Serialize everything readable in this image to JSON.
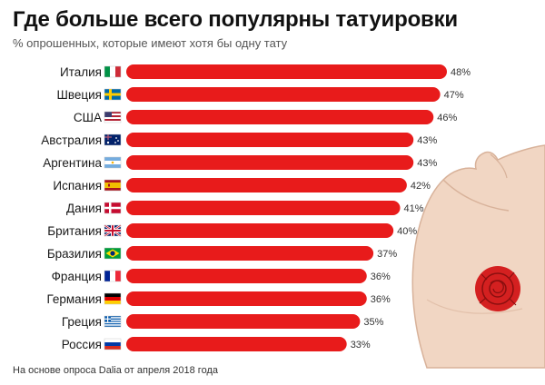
{
  "title": "Где больше всего популярны татуировки",
  "subtitle": "% опрошенных, которые имеют хотя бы одну тату",
  "footnote": "На основе опроса Dalia от апреля 2018 года",
  "colors": {
    "bar": "#e81b1b",
    "rose": "#d42020",
    "skin": "#f1d6c3",
    "skin_outline": "#d8b29a"
  },
  "icons": [
    "flexed-arm-icon",
    "rose-tattoo-icon"
  ],
  "chart_data": {
    "type": "bar",
    "orientation": "horizontal",
    "categories": [
      "Италия",
      "Швеция",
      "США",
      "Австралия",
      "Аргентина",
      "Испания",
      "Дания",
      "Британия",
      "Бразилия",
      "Франция",
      "Германия",
      "Греция",
      "Россия"
    ],
    "flags": [
      "italy-flag-icon",
      "sweden-flag-icon",
      "usa-flag-icon",
      "australia-flag-icon",
      "argentina-flag-icon",
      "spain-flag-icon",
      "denmark-flag-icon",
      "uk-flag-icon",
      "brazil-flag-icon",
      "france-flag-icon",
      "germany-flag-icon",
      "greece-flag-icon",
      "russia-flag-icon"
    ],
    "values": [
      48,
      47,
      46,
      43,
      43,
      42,
      41,
      40,
      37,
      36,
      36,
      35,
      33
    ],
    "value_labels": [
      "48%",
      "47%",
      "46%",
      "43%",
      "43%",
      "42%",
      "41%",
      "40%",
      "37%",
      "36%",
      "36%",
      "35%",
      "33%"
    ],
    "unit": "%",
    "xlim": [
      0,
      48
    ],
    "grid": false,
    "legend": "none"
  }
}
